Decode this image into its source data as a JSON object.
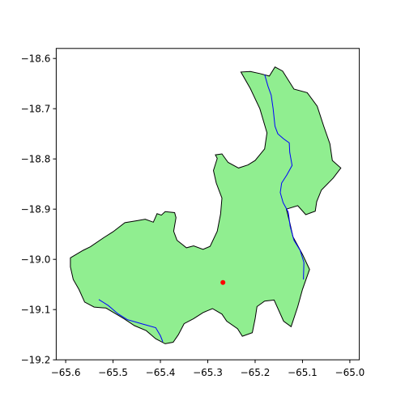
{
  "chart_data": {
    "type": "map",
    "title": "",
    "xlabel": "",
    "ylabel": "",
    "xlim": [
      -65.62,
      -64.98
    ],
    "ylim": [
      -19.2,
      -18.58
    ],
    "grid": false,
    "x_ticks": [
      -65.6,
      -65.5,
      -65.4,
      -65.3,
      -65.2,
      -65.1,
      -65.0
    ],
    "y_ticks": [
      -18.6,
      -18.7,
      -18.8,
      -18.9,
      -19.0,
      -19.1,
      -19.2
    ],
    "x_tick_labels": [
      "−65.6",
      "−65.5",
      "−65.4",
      "−65.3",
      "−65.2",
      "−65.1",
      "−65.0"
    ],
    "y_tick_labels": [
      "−18.6",
      "−18.7",
      "−18.8",
      "−18.9",
      "−19.0",
      "−19.1",
      "−19.2"
    ],
    "region": {
      "fill_color": "#90ee90",
      "edge_color": "#000000",
      "boundary": [
        [
          -65.59,
          -18.997
        ],
        [
          -65.563,
          -18.982
        ],
        [
          -65.548,
          -18.975
        ],
        [
          -65.52,
          -18.957
        ],
        [
          -65.5,
          -18.945
        ],
        [
          -65.475,
          -18.927
        ],
        [
          -65.45,
          -18.923
        ],
        [
          -65.432,
          -18.92
        ],
        [
          -65.415,
          -18.926
        ],
        [
          -65.407,
          -18.909
        ],
        [
          -65.398,
          -18.912
        ],
        [
          -65.39,
          -18.905
        ],
        [
          -65.37,
          -18.907
        ],
        [
          -65.367,
          -18.917
        ],
        [
          -65.372,
          -18.944
        ],
        [
          -65.365,
          -18.962
        ],
        [
          -65.345,
          -18.977
        ],
        [
          -65.33,
          -18.973
        ],
        [
          -65.31,
          -18.98
        ],
        [
          -65.295,
          -18.974
        ],
        [
          -65.28,
          -18.944
        ],
        [
          -65.273,
          -18.91
        ],
        [
          -65.27,
          -18.878
        ],
        [
          -65.282,
          -18.848
        ],
        [
          -65.288,
          -18.823
        ],
        [
          -65.28,
          -18.799
        ],
        [
          -65.284,
          -18.792
        ],
        [
          -65.27,
          -18.79
        ],
        [
          -65.257,
          -18.807
        ],
        [
          -65.235,
          -18.818
        ],
        [
          -65.215,
          -18.812
        ],
        [
          -65.2,
          -18.803
        ],
        [
          -65.18,
          -18.78
        ],
        [
          -65.175,
          -18.748
        ],
        [
          -65.19,
          -18.7
        ],
        [
          -65.21,
          -18.66
        ],
        [
          -65.23,
          -18.627
        ],
        [
          -65.21,
          -18.626
        ],
        [
          -65.19,
          -18.63
        ],
        [
          -65.17,
          -18.635
        ],
        [
          -65.158,
          -18.617
        ],
        [
          -65.142,
          -18.625
        ],
        [
          -65.118,
          -18.661
        ],
        [
          -65.09,
          -18.668
        ],
        [
          -65.069,
          -18.695
        ],
        [
          -65.055,
          -18.735
        ],
        [
          -65.042,
          -18.77
        ],
        [
          -65.037,
          -18.803
        ],
        [
          -65.019,
          -18.818
        ],
        [
          -65.035,
          -18.838
        ],
        [
          -65.06,
          -18.862
        ],
        [
          -65.07,
          -18.885
        ],
        [
          -65.073,
          -18.904
        ],
        [
          -65.093,
          -18.911
        ],
        [
          -65.11,
          -18.893
        ],
        [
          -65.134,
          -18.9
        ],
        [
          -65.126,
          -18.93
        ],
        [
          -65.12,
          -18.955
        ],
        [
          -65.1,
          -18.99
        ],
        [
          -65.085,
          -19.02
        ],
        [
          -65.1,
          -19.06
        ],
        [
          -65.11,
          -19.094
        ],
        [
          -65.124,
          -19.134
        ],
        [
          -65.14,
          -19.123
        ],
        [
          -65.16,
          -19.081
        ],
        [
          -65.18,
          -19.083
        ],
        [
          -65.196,
          -19.094
        ],
        [
          -65.2,
          -19.118
        ],
        [
          -65.206,
          -19.146
        ],
        [
          -65.227,
          -19.153
        ],
        [
          -65.237,
          -19.138
        ],
        [
          -65.26,
          -19.123
        ],
        [
          -65.27,
          -19.109
        ],
        [
          -65.29,
          -19.098
        ],
        [
          -65.31,
          -19.106
        ],
        [
          -65.33,
          -19.118
        ],
        [
          -65.35,
          -19.128
        ],
        [
          -65.362,
          -19.15
        ],
        [
          -65.373,
          -19.165
        ],
        [
          -65.39,
          -19.168
        ],
        [
          -65.41,
          -19.158
        ],
        [
          -65.43,
          -19.142
        ],
        [
          -65.455,
          -19.132
        ],
        [
          -65.477,
          -19.118
        ],
        [
          -65.495,
          -19.108
        ],
        [
          -65.515,
          -19.097
        ],
        [
          -65.54,
          -19.095
        ],
        [
          -65.56,
          -19.085
        ],
        [
          -65.572,
          -19.06
        ],
        [
          -65.584,
          -19.04
        ],
        [
          -65.59,
          -19.015
        ]
      ]
    },
    "rivers": {
      "color": "#0000ff",
      "lines": [
        [
          [
            -65.18,
            -18.632
          ],
          [
            -65.173,
            -18.655
          ],
          [
            -65.166,
            -18.673
          ],
          [
            -65.162,
            -18.7
          ],
          [
            -65.158,
            -18.735
          ],
          [
            -65.152,
            -18.75
          ],
          [
            -65.14,
            -18.76
          ],
          [
            -65.128,
            -18.768
          ],
          [
            -65.127,
            -18.787
          ],
          [
            -65.122,
            -18.813
          ],
          [
            -65.133,
            -18.832
          ],
          [
            -65.144,
            -18.848
          ],
          [
            -65.147,
            -18.867
          ],
          [
            -65.141,
            -18.887
          ],
          [
            -65.13,
            -18.906
          ],
          [
            -65.126,
            -18.934
          ],
          [
            -65.118,
            -18.962
          ],
          [
            -65.105,
            -18.982
          ],
          [
            -65.097,
            -19.006
          ],
          [
            -65.098,
            -19.04
          ]
        ],
        [
          [
            -65.53,
            -19.08
          ],
          [
            -65.51,
            -19.092
          ],
          [
            -65.49,
            -19.108
          ],
          [
            -65.47,
            -19.12
          ],
          [
            -65.44,
            -19.128
          ],
          [
            -65.41,
            -19.136
          ],
          [
            -65.4,
            -19.152
          ],
          [
            -65.395,
            -19.164
          ]
        ]
      ]
    },
    "points": [
      {
        "lon": -65.268,
        "lat": -19.046,
        "color": "#ff0000"
      }
    ]
  }
}
